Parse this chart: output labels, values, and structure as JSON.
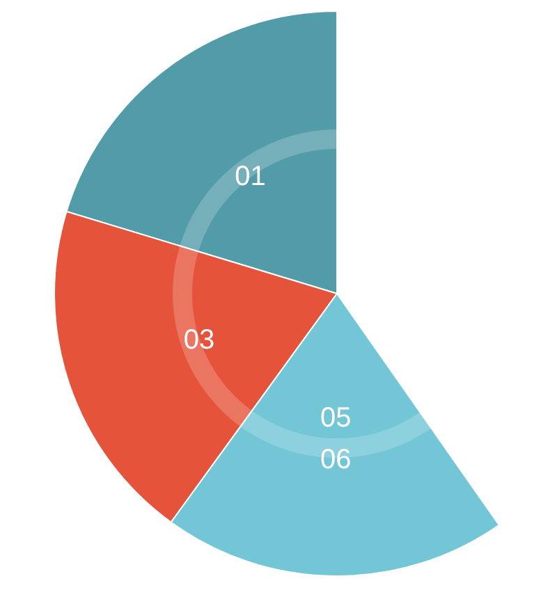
{
  "chart_data": {
    "type": "pie",
    "categories": [
      "01",
      "03",
      "05\n06"
    ],
    "values": [
      34,
      33,
      33
    ],
    "colors": [
      "#529ba9",
      "#e5533a",
      "#72c6d6"
    ],
    "data_labels": false,
    "legend": false
  }
}
